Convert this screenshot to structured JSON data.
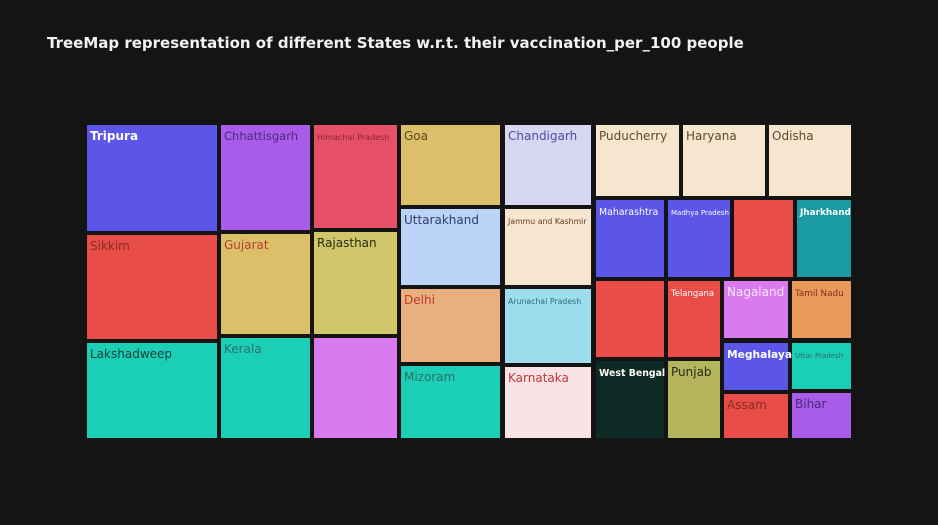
{
  "chart_data": {
    "type": "treemap",
    "title": "TreeMap representation of different States w.r.t. their vaccination_per_100 people",
    "colors": [
      "#5B55E8",
      "#E84D47",
      "#1ACFB5",
      "#A95BEA",
      "#E65066",
      "#DDBF6A",
      "#CFC76A",
      "#D97AEF",
      "#BBD3F7",
      "#E8B07E",
      "#D7D7F2",
      "#F6E6D0",
      "#9DDDEE",
      "#FAE3E6",
      "#0E2A24",
      "#1A9BA3",
      "#B5B55E",
      "#E89A5A"
    ],
    "tiles": [
      {
        "label": "Tripura",
        "color_index": 0,
        "label_color": "#FFFFFF",
        "bold": true
      },
      {
        "label": "Sikkim",
        "color_index": 1,
        "label_color": "#8a2a28"
      },
      {
        "label": "Lakshadweep",
        "color_index": 2,
        "label_color": "#1e3d3a"
      },
      {
        "label": "Chhattisgarh",
        "color_index": 3,
        "label_color": "#4a2a7a"
      },
      {
        "label": "Gujarat",
        "color_index": 5,
        "label_color": "#b43f2f"
      },
      {
        "label": "Kerala",
        "color_index": 2,
        "label_color": "#2c7068"
      },
      {
        "label": "Himachal Pradesh",
        "color_index": 4,
        "label_color": "#8c2434"
      },
      {
        "label": "Rajasthan",
        "color_index": 6,
        "label_color": "#2b2b18"
      },
      {
        "label": "",
        "color_index": 7,
        "label_color": "#2b2b18"
      },
      {
        "label": "Goa",
        "color_index": 5,
        "label_color": "#5a4a1f"
      },
      {
        "label": "Uttarakhand",
        "color_index": 8,
        "label_color": "#2a3d6b"
      },
      {
        "label": "Delhi",
        "color_index": 9,
        "label_color": "#c0392b"
      },
      {
        "label": "Mizoram",
        "color_index": 2,
        "label_color": "#2c7068"
      },
      {
        "label": "Chandigarh",
        "color_index": 10,
        "label_color": "#4b4ba8"
      },
      {
        "label": "Jammu and Kashmir",
        "color_index": 11,
        "label_color": "#6b3a22"
      },
      {
        "label": "Arunachal Pradesh",
        "color_index": 12,
        "label_color": "#2d6b7c"
      },
      {
        "label": "Karnataka",
        "color_index": 13,
        "label_color": "#c23838"
      },
      {
        "label": "Puducherry",
        "color_index": 11,
        "label_color": "#5a4a2a"
      },
      {
        "label": "Haryana",
        "color_index": 11,
        "label_color": "#5a4a2a"
      },
      {
        "label": "Odisha",
        "color_index": 11,
        "label_color": "#5a4a2a"
      },
      {
        "label": "Maharashtra",
        "color_index": 0,
        "label_color": "#FFFFFF"
      },
      {
        "label": "Madhya Pradesh",
        "color_index": 0,
        "label_color": "#FFFFFF"
      },
      {
        "label": "",
        "color_index": 1,
        "label_color": "#FFFFFF"
      },
      {
        "label": "Jharkhand",
        "color_index": 15,
        "label_color": "#FFFFFF",
        "bold": true
      },
      {
        "label": "",
        "color_index": 1,
        "label_color": "#FFFFFF"
      },
      {
        "label": "Telangana",
        "color_index": 1,
        "label_color": "#FFFFFF"
      },
      {
        "label": "Nagaland",
        "color_index": 7,
        "label_color": "#f6e6ff"
      },
      {
        "label": "Tamil Nadu",
        "color_index": 17,
        "label_color": "#8a2a28"
      },
      {
        "label": "West Bengal",
        "color_index": 14,
        "label_color": "#FFFFFF",
        "bold": true
      },
      {
        "label": "Punjab",
        "color_index": 16,
        "label_color": "#2b2b18"
      },
      {
        "label": "Meghalaya",
        "color_index": 0,
        "label_color": "#FFFFFF",
        "bold": true
      },
      {
        "label": "Uttar Pradesh",
        "color_index": 2,
        "label_color": "#2c7068"
      },
      {
        "label": "Assam",
        "color_index": 1,
        "label_color": "#8a2a28"
      },
      {
        "label": "Bihar",
        "color_index": 3,
        "label_color": "#4a2a7a"
      }
    ]
  }
}
